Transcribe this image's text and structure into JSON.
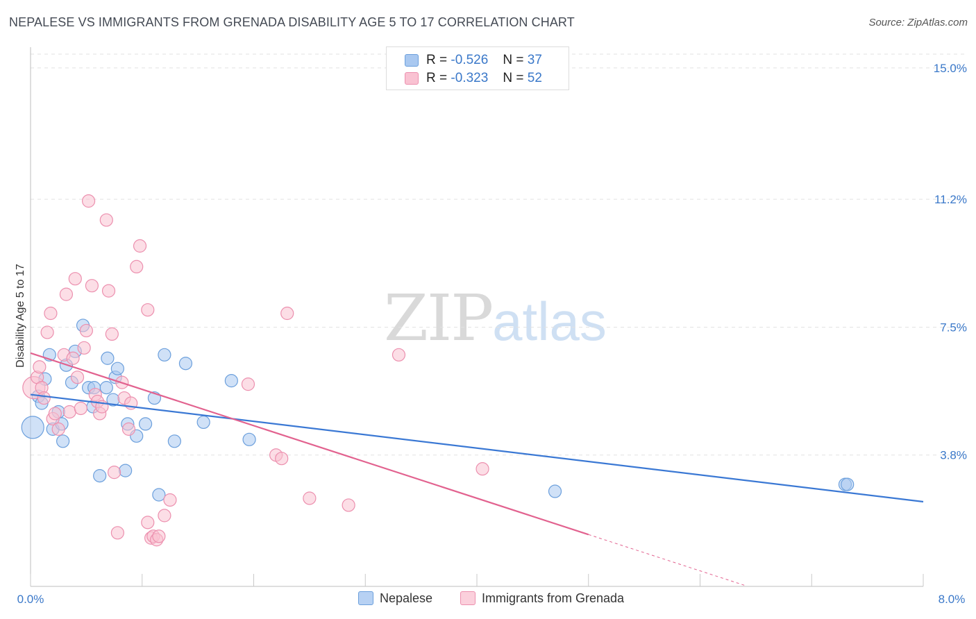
{
  "title": "NEPALESE VS IMMIGRANTS FROM GRENADA DISABILITY AGE 5 TO 17 CORRELATION CHART",
  "source": "Source: ZipAtlas.com",
  "watermark": {
    "zip": "ZIP",
    "atlas": "atlas"
  },
  "legend": {
    "rows": [
      {
        "r_label": "R =",
        "r_value": "-0.526",
        "n_label": "N =",
        "n_value": "37",
        "color": "#a9c8f0",
        "border": "#6b9fdc"
      },
      {
        "r_label": "R =",
        "r_value": "-0.323",
        "n_label": "N =",
        "n_value": "52",
        "color": "#f9c2d2",
        "border": "#ec8fae"
      }
    ]
  },
  "bottom_legend": [
    {
      "label": "Nepalese",
      "color": "#b7d1f3",
      "border": "#6b9fdc"
    },
    {
      "label": "Immigrants from Grenada",
      "color": "#fbd0dc",
      "border": "#ec8fae"
    }
  ],
  "chart_data": {
    "type": "scatter",
    "xlabel": "",
    "ylabel": "Disability Age 5 to 17",
    "xlim": [
      0,
      8
    ],
    "ylim": [
      0,
      15.6
    ],
    "x_tick_labels": [
      "0.0%",
      "8.0%"
    ],
    "y_ticks": [
      3.8,
      7.5,
      11.2,
      15.0
    ],
    "y_tick_labels": [
      "3.8%",
      "7.5%",
      "11.2%",
      "15.0%"
    ],
    "grid": true,
    "series": [
      {
        "name": "Nepalese",
        "color": "#6b9fdc",
        "fill": "#a9c8f0",
        "trend": {
          "x0": 0.0,
          "y0": 5.55,
          "x1": 8.0,
          "y1": 2.45,
          "color": "#3a78d4"
        },
        "points": [
          [
            0.02,
            4.6,
            16
          ],
          [
            0.07,
            5.5,
            9
          ],
          [
            0.1,
            5.3,
            9
          ],
          [
            0.13,
            6.0,
            9
          ],
          [
            0.17,
            6.7,
            9
          ],
          [
            0.2,
            4.55,
            9
          ],
          [
            0.25,
            5.05,
            9
          ],
          [
            0.28,
            4.7,
            9
          ],
          [
            0.29,
            4.2,
            9
          ],
          [
            0.32,
            6.4,
            9
          ],
          [
            0.37,
            5.9,
            9
          ],
          [
            0.4,
            6.8,
            9
          ],
          [
            0.47,
            7.55,
            9
          ],
          [
            0.52,
            5.75,
            9
          ],
          [
            0.56,
            5.2,
            9
          ],
          [
            0.57,
            5.75,
            9
          ],
          [
            0.62,
            3.2,
            9
          ],
          [
            0.68,
            5.75,
            9
          ],
          [
            0.69,
            6.6,
            9
          ],
          [
            0.74,
            5.4,
            9
          ],
          [
            0.76,
            6.05,
            9
          ],
          [
            0.78,
            6.3,
            9
          ],
          [
            0.85,
            3.35,
            9
          ],
          [
            0.87,
            4.7,
            9
          ],
          [
            0.95,
            4.35,
            9
          ],
          [
            1.03,
            4.7,
            9
          ],
          [
            1.11,
            5.45,
            9
          ],
          [
            1.15,
            2.65,
            9
          ],
          [
            1.2,
            6.7,
            9
          ],
          [
            1.29,
            4.2,
            9
          ],
          [
            1.39,
            6.45,
            9
          ],
          [
            1.55,
            4.75,
            9
          ],
          [
            1.8,
            5.95,
            9
          ],
          [
            1.96,
            4.25,
            9
          ],
          [
            4.7,
            2.75,
            9
          ],
          [
            7.3,
            2.95,
            9
          ],
          [
            7.32,
            2.95,
            9
          ]
        ]
      },
      {
        "name": "Immigrants from Grenada",
        "color": "#ec8fae",
        "fill": "#f9c2d2",
        "trend": {
          "x0": 0.0,
          "y0": 6.75,
          "x1": 5.0,
          "y1": 1.5,
          "dash_to_x": 6.4,
          "color": "#e2628f"
        },
        "points": [
          [
            0.03,
            5.75,
            16
          ],
          [
            0.06,
            6.05,
            9
          ],
          [
            0.08,
            6.35,
            9
          ],
          [
            0.1,
            5.75,
            9
          ],
          [
            0.12,
            5.45,
            9
          ],
          [
            0.15,
            7.35,
            9
          ],
          [
            0.18,
            7.9,
            9
          ],
          [
            0.2,
            4.85,
            9
          ],
          [
            0.22,
            5.0,
            9
          ],
          [
            0.25,
            4.55,
            9
          ],
          [
            0.3,
            6.7,
            9
          ],
          [
            0.32,
            8.45,
            9
          ],
          [
            0.35,
            5.05,
            9
          ],
          [
            0.38,
            6.6,
            9
          ],
          [
            0.4,
            8.9,
            9
          ],
          [
            0.42,
            6.05,
            9
          ],
          [
            0.45,
            5.15,
            9
          ],
          [
            0.48,
            6.9,
            9
          ],
          [
            0.5,
            7.4,
            9
          ],
          [
            0.52,
            11.15,
            9
          ],
          [
            0.55,
            8.7,
            9
          ],
          [
            0.58,
            5.55,
            9
          ],
          [
            0.6,
            5.35,
            9
          ],
          [
            0.62,
            5.0,
            9
          ],
          [
            0.64,
            5.2,
            9
          ],
          [
            0.68,
            10.6,
            9
          ],
          [
            0.7,
            8.55,
            9
          ],
          [
            0.73,
            7.3,
            9
          ],
          [
            0.75,
            3.3,
            9
          ],
          [
            0.78,
            1.55,
            9
          ],
          [
            0.82,
            5.9,
            9
          ],
          [
            0.84,
            5.45,
            9
          ],
          [
            0.88,
            4.55,
            9
          ],
          [
            0.9,
            5.3,
            9
          ],
          [
            0.95,
            9.25,
            9
          ],
          [
            0.98,
            9.85,
            9
          ],
          [
            1.05,
            8.0,
            9
          ],
          [
            1.05,
            1.85,
            9
          ],
          [
            1.08,
            1.4,
            9
          ],
          [
            1.1,
            1.45,
            9
          ],
          [
            1.13,
            1.35,
            9
          ],
          [
            1.15,
            1.45,
            9
          ],
          [
            1.2,
            2.05,
            9
          ],
          [
            1.25,
            2.5,
            9
          ],
          [
            1.95,
            5.85,
            9
          ],
          [
            2.2,
            3.8,
            9
          ],
          [
            2.25,
            3.7,
            9
          ],
          [
            2.3,
            7.9,
            9
          ],
          [
            2.5,
            2.55,
            9
          ],
          [
            2.85,
            2.35,
            9
          ],
          [
            3.3,
            6.7,
            9
          ],
          [
            4.05,
            3.4,
            9
          ]
        ]
      }
    ]
  }
}
